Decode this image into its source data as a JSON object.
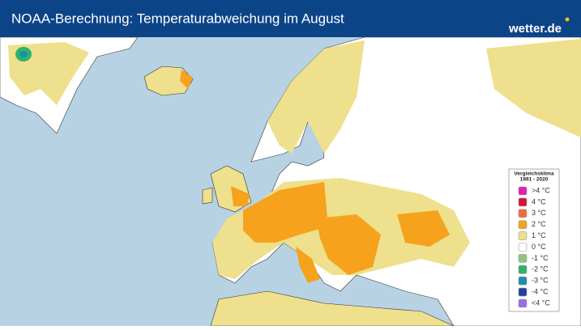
{
  "header": {
    "title": "NOAA-Berechnung: Temperaturabweichung im August",
    "brand": "wetter.de"
  },
  "legend": {
    "title": [
      "Vergleichsklima",
      "1991 - 2020"
    ],
    "items": [
      {
        "label": ">4 °C",
        "color": "#e41fb5"
      },
      {
        "label": "4 °C",
        "color": "#d6122f"
      },
      {
        "label": "3 °C",
        "color": "#ef6a3c"
      },
      {
        "label": "2 °C",
        "color": "#f6a21c"
      },
      {
        "label": "1 °C",
        "color": "#eee08c"
      },
      {
        "label": "0 °C",
        "color": "#ffffff"
      },
      {
        "label": "-1 °C",
        "color": "#93c47d"
      },
      {
        "label": "-2 °C",
        "color": "#2db36b"
      },
      {
        "label": "-3 °C",
        "color": "#1b90aa"
      },
      {
        "label": "-4 °C",
        "color": "#1f3fa6"
      },
      {
        "label": "<4 °C",
        "color": "#9b6ee6"
      }
    ]
  }
}
